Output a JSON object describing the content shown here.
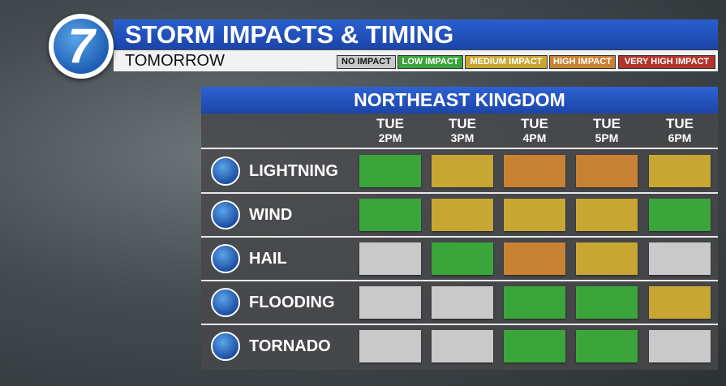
{
  "header": {
    "logo": "7",
    "title": "STORM IMPACTS & TIMING",
    "subtitle": "TOMORROW"
  },
  "legend": [
    {
      "label": "NO IMPACT",
      "color": "#c9c9c9"
    },
    {
      "label": "LOW IMPACT",
      "color": "#3aa53a"
    },
    {
      "label": "MEDIUM IMPACT",
      "color": "#c8a633"
    },
    {
      "label": "HIGH IMPACT",
      "color": "#c98233"
    },
    {
      "label": "VERY HIGH IMPACT",
      "color": "#b3352a"
    }
  ],
  "panel": {
    "title": "NORTHEAST KINGDOM",
    "columns": [
      {
        "day": "TUE",
        "time": "2PM"
      },
      {
        "day": "TUE",
        "time": "3PM"
      },
      {
        "day": "TUE",
        "time": "4PM"
      },
      {
        "day": "TUE",
        "time": "5PM"
      },
      {
        "day": "TUE",
        "time": "6PM"
      }
    ],
    "rows": [
      {
        "label": "LIGHTNING",
        "levels": [
          1,
          2,
          3,
          3,
          2
        ]
      },
      {
        "label": "WIND",
        "levels": [
          1,
          2,
          2,
          2,
          1
        ]
      },
      {
        "label": "HAIL",
        "levels": [
          0,
          1,
          3,
          2,
          0
        ]
      },
      {
        "label": "FLOODING",
        "levels": [
          0,
          0,
          1,
          1,
          2
        ]
      },
      {
        "label": "TORNADO",
        "levels": [
          0,
          0,
          1,
          1,
          0
        ]
      }
    ]
  }
}
